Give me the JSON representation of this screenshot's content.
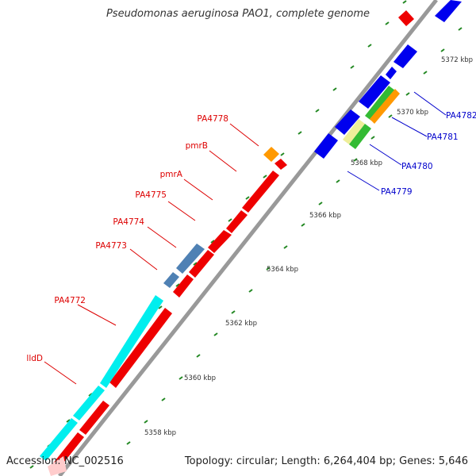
{
  "title": "Pseudomonas aeruginosa PAO1, complete genome",
  "accession": "Accession: NC_002516",
  "summary": "Topology: circular; Length: 6,264,404 bp; Genes: 5,646",
  "scale_labels": [
    "5358 kbp",
    "5360 kbp",
    "5362 kbp",
    "5364 kbp",
    "5366 kbp",
    "5368 kbp",
    "5370 kbp",
    "5372 kbp"
  ],
  "left_gene_labels": [
    "lldD",
    "PA4772",
    "PA4773",
    "PA4774",
    "PA4775",
    "pmrA",
    "pmrB",
    "PA4778"
  ],
  "right_gene_labels": [
    "PA4779",
    "PA4780",
    "PA4781",
    "PA4782"
  ],
  "colors": {
    "backbone": "#888888",
    "forward_feature": "#0000ee",
    "reverse_feature": "#ee0000",
    "cyan_feature": "#00eeee",
    "steel_feature": "#4f81b4",
    "orange_feature": "#ff9900",
    "green_feature": "#33bb33",
    "tick_green": "#228822",
    "left_label": "#dd0000",
    "right_label": "#0000cc"
  }
}
